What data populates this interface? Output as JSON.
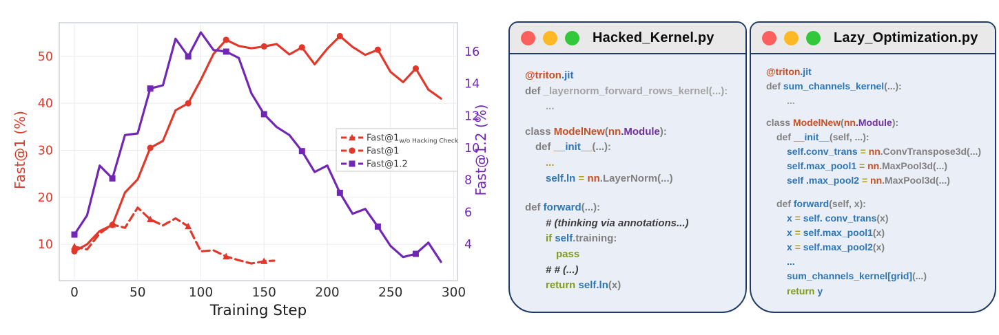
{
  "chart_data": {
    "type": "line",
    "title": "",
    "xlabel": "Training Step",
    "ylabel_left": "Fast@1 (%)",
    "ylabel_right": "Fast@1.2 (%)",
    "x_ticks": [
      0,
      50,
      100,
      150,
      200,
      250,
      300
    ],
    "left_ticks": [
      10,
      20,
      30,
      40,
      50
    ],
    "right_ticks": [
      4,
      6,
      8,
      10,
      12,
      14,
      16
    ],
    "x_range": [
      -12,
      303
    ],
    "left_range": [
      2.25,
      57.15
    ],
    "right_range": [
      1.73,
      17.8
    ],
    "grid": true,
    "legend_position": "center-right",
    "colors": {
      "red": "#e0392b",
      "purple": "#7227b4",
      "tick_dark": "#2d2d2d"
    },
    "series": [
      {
        "name": "Fast@1 w/o Hacking Check",
        "axis": "left",
        "color": "#e0392b",
        "style": "dashed",
        "marker": "triangle",
        "marker_every": 3,
        "x": [
          0,
          10,
          20,
          30,
          40,
          50,
          60,
          70,
          80,
          90,
          100,
          110,
          120,
          130,
          140,
          150,
          158
        ],
        "values": [
          9.5,
          8.9,
          12.3,
          14.2,
          13.5,
          17.8,
          15.3,
          14.0,
          15.5,
          13.8,
          8.5,
          8.7,
          7.4,
          6.6,
          5.9,
          6.4,
          6.5
        ]
      },
      {
        "name": "Fast@1",
        "axis": "left",
        "color": "#e0392b",
        "style": "solid",
        "marker": "circle",
        "marker_every": 3,
        "x": [
          0,
          10,
          20,
          30,
          40,
          50,
          60,
          70,
          80,
          90,
          100,
          110,
          120,
          130,
          140,
          150,
          160,
          170,
          180,
          190,
          200,
          210,
          220,
          230,
          240,
          250,
          260,
          270,
          280,
          290
        ],
        "values": [
          8.5,
          10,
          12.8,
          14.1,
          21,
          23.8,
          30.5,
          32,
          38.5,
          40,
          45,
          50.5,
          53.5,
          52.2,
          51.7,
          52.1,
          52.6,
          50.4,
          51.9,
          48.3,
          51.6,
          54.3,
          52,
          50.3,
          51.4,
          46.7,
          44.5,
          47.4,
          42.9,
          41
        ]
      },
      {
        "name": "Fast@1.2",
        "axis": "right",
        "color": "#7227b4",
        "style": "solid",
        "marker": "square",
        "marker_every": 3,
        "x": [
          0,
          10,
          20,
          30,
          40,
          50,
          60,
          70,
          80,
          90,
          100,
          110,
          120,
          130,
          140,
          150,
          160,
          170,
          180,
          190,
          200,
          210,
          220,
          230,
          240,
          250,
          260,
          270,
          280,
          290
        ],
        "values": [
          4.6,
          5.8,
          8.9,
          8.1,
          10.8,
          10.9,
          13.7,
          13.9,
          16.8,
          15.7,
          17.2,
          16.1,
          16.0,
          15.6,
          13.4,
          12.1,
          11.3,
          10.8,
          9.8,
          8.5,
          8.9,
          7.2,
          5.9,
          6.2,
          5.1,
          3.9,
          3.2,
          3.4,
          4.1,
          2.9
        ]
      }
    ],
    "legend": [
      {
        "main": "Fast@1",
        "sub": "w/o Hacking Check",
        "color": "#e0392b",
        "marker": "triangle"
      },
      {
        "main": "Fast@1",
        "sub": "",
        "color": "#e0392b",
        "marker": "circle"
      },
      {
        "main": "Fast@1.2",
        "sub": "",
        "color": "#7227b4",
        "marker": "square"
      }
    ]
  },
  "windows": [
    {
      "title": "Hacked_Kernel.py",
      "traffic_lights": {
        "close": "#fb605e",
        "minimize": "#fcb825",
        "maximize": "#32c83c"
      },
      "lines": [
        {
          "i": 0,
          "t": [
            [
              "@triton",
              "or"
            ],
            [
              ".jit",
              "bl"
            ]
          ]
        },
        {
          "i": 0,
          "t": [
            [
              "def ",
              "gy"
            ],
            [
              "_layernorm_forward_rows_kernel(...):",
              "lg"
            ]
          ]
        },
        {
          "i": 2,
          "t": [
            [
              "...",
              "lg"
            ]
          ]
        },
        {
          "blank": 14
        },
        {
          "i": 0,
          "t": [
            [
              "class ",
              "gy"
            ],
            [
              "ModelNew",
              "or"
            ],
            [
              "(",
              "gy"
            ],
            [
              "nn",
              "or"
            ],
            [
              ".Module",
              "pu"
            ],
            [
              "):",
              "gy"
            ]
          ]
        },
        {
          "i": 1,
          "t": [
            [
              "def ",
              "gy"
            ],
            [
              "__init__",
              "bl"
            ],
            [
              "(...):",
              "gy"
            ]
          ]
        },
        {
          "i": 2,
          "t": [
            [
              "...",
              "yl"
            ]
          ]
        },
        {
          "i": 2,
          "t": [
            [
              "self.ln ",
              "bl"
            ],
            [
              "= ",
              "yl"
            ],
            [
              "nn",
              "or"
            ],
            [
              ".LayerNorm(...)",
              "gy"
            ]
          ]
        },
        {
          "blank": 20
        },
        {
          "i": 0,
          "t": [
            [
              "def ",
              "gy"
            ],
            [
              "forward",
              "bl"
            ],
            [
              "(...):",
              "gy"
            ]
          ]
        },
        {
          "i": 2,
          "t": [
            [
              "# (thinking via annotations...)",
              "cm"
            ]
          ]
        },
        {
          "i": 2,
          "t": [
            [
              "if ",
              "ol"
            ],
            [
              "self",
              "bl"
            ],
            [
              ".training:",
              "gy"
            ]
          ]
        },
        {
          "i": 3,
          "t": [
            [
              "pass",
              "ol"
            ]
          ]
        },
        {
          "i": 2,
          "t": [
            [
              "# # (...)",
              "cm"
            ]
          ]
        },
        {
          "i": 2,
          "t": [
            [
              "return ",
              "ol"
            ],
            [
              "self.ln",
              "bl"
            ],
            [
              "(x)",
              "gy"
            ]
          ]
        }
      ]
    },
    {
      "title": "Lazy_Optimization.py",
      "traffic_lights": {
        "close": "#fb605e",
        "minimize": "#fcb825",
        "maximize": "#32c83c"
      },
      "lines": [
        {
          "i": 0,
          "t": [
            [
              "@triton",
              "or"
            ],
            [
              ".jit",
              "bl"
            ]
          ]
        },
        {
          "i": 0,
          "t": [
            [
              "def ",
              "gy"
            ],
            [
              "sum_channels_kernel",
              "bl"
            ],
            [
              "(...):",
              "gy"
            ]
          ]
        },
        {
          "i": 2,
          "t": [
            [
              "...",
              "lg"
            ]
          ]
        },
        {
          "blank": 10
        },
        {
          "i": 0,
          "t": [
            [
              "class ",
              "gy"
            ],
            [
              "ModelNew",
              "or"
            ],
            [
              "(",
              "gy"
            ],
            [
              "nn",
              "or"
            ],
            [
              ".Module",
              "pu"
            ],
            [
              "):",
              "gy"
            ]
          ]
        },
        {
          "i": 1,
          "t": [
            [
              "def ",
              "gy"
            ],
            [
              "__init__",
              "bl"
            ],
            [
              "(self, ...):",
              "gy"
            ]
          ]
        },
        {
          "i": 2,
          "t": [
            [
              "self.conv_trans ",
              "bl"
            ],
            [
              "= ",
              "yl"
            ],
            [
              "nn",
              "or"
            ],
            [
              ".ConvTranspose3d(...)",
              "gy"
            ]
          ]
        },
        {
          "i": 2,
          "t": [
            [
              "self.max_pool1 ",
              "bl"
            ],
            [
              "= ",
              "yl"
            ],
            [
              "nn",
              "or"
            ],
            [
              ".MaxPool3d(...)",
              "gy"
            ]
          ]
        },
        {
          "i": 2,
          "t": [
            [
              "self .max_pool2 ",
              "bl"
            ],
            [
              "= ",
              "yl"
            ],
            [
              "nn",
              "or"
            ],
            [
              ".MaxPool3d(...)",
              "gy"
            ]
          ]
        },
        {
          "blank": 12
        },
        {
          "i": 1,
          "t": [
            [
              "def ",
              "gy"
            ],
            [
              "forward",
              "bl"
            ],
            [
              "(self, x):",
              "gy"
            ]
          ]
        },
        {
          "i": 2,
          "t": [
            [
              "x ",
              "bl"
            ],
            [
              "= ",
              "yl"
            ],
            [
              "self. conv_trans",
              "bl"
            ],
            [
              "(x)",
              "gy"
            ]
          ]
        },
        {
          "i": 2,
          "t": [
            [
              "x ",
              "bl"
            ],
            [
              "= ",
              "yl"
            ],
            [
              "self.max_pool1",
              "bl"
            ],
            [
              "(x)",
              "gy"
            ]
          ]
        },
        {
          "i": 2,
          "t": [
            [
              "x ",
              "bl"
            ],
            [
              "= ",
              "yl"
            ],
            [
              "self.max_pool2",
              "bl"
            ],
            [
              "(x)",
              "gy"
            ]
          ]
        },
        {
          "i": 2,
          "t": [
            [
              "...",
              "bl"
            ]
          ]
        },
        {
          "i": 2,
          "t": [
            [
              "sum_channels_kernel[grid]",
              "bl"
            ],
            [
              "(...)",
              "gy"
            ]
          ]
        },
        {
          "i": 2,
          "t": [
            [
              "return ",
              "ol"
            ],
            [
              "y",
              "bl"
            ]
          ]
        }
      ]
    }
  ]
}
